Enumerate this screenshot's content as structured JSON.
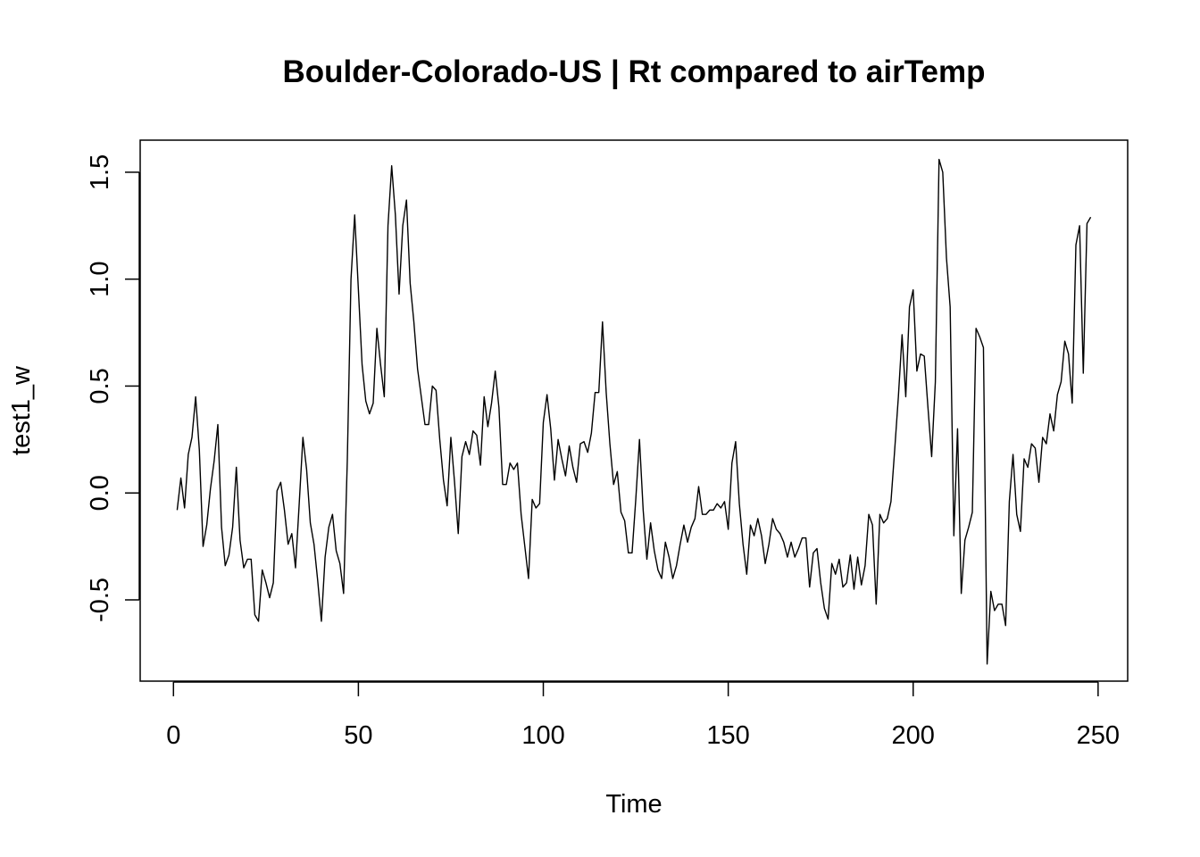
{
  "chart_data": {
    "type": "line",
    "title": "Boulder-Colorado-US | Rt compared to airTemp",
    "xlabel": "Time",
    "ylabel": "test1_w",
    "xlim": [
      -9,
      258
    ],
    "ylim": [
      -0.88,
      1.65
    ],
    "x_ticks": [
      0,
      50,
      100,
      150,
      200,
      250
    ],
    "x_tick_labels": [
      "0",
      "50",
      "100",
      "150",
      "200",
      "250"
    ],
    "y_ticks": [
      -0.5,
      0.0,
      0.5,
      1.0,
      1.5
    ],
    "y_tick_labels": [
      "-0.5",
      "0.0",
      "0.5",
      "1.0",
      "1.5"
    ],
    "grid": false,
    "series": [
      {
        "x": [
          1,
          2,
          3,
          4,
          5,
          6,
          7,
          8,
          9,
          10,
          11,
          12,
          13,
          14,
          15,
          16,
          17,
          18,
          19,
          20,
          21,
          22,
          23,
          24,
          25,
          26,
          27,
          28,
          29,
          30,
          31,
          32,
          33,
          34,
          35,
          36,
          37,
          38,
          39,
          40,
          41,
          42,
          43,
          44,
          45,
          46,
          47,
          48,
          49,
          50,
          51,
          52,
          53,
          54,
          55,
          56,
          57,
          58,
          59,
          60,
          61,
          62,
          63,
          64,
          65,
          66,
          67,
          68,
          69,
          70,
          71,
          72,
          73,
          74,
          75,
          76,
          77,
          78,
          79,
          80,
          81,
          82,
          83,
          84,
          85,
          86,
          87,
          88,
          89,
          90,
          91,
          92,
          93,
          94,
          95,
          96,
          97,
          98,
          99,
          100,
          101,
          102,
          103,
          104,
          105,
          106,
          107,
          108,
          109,
          110,
          111,
          112,
          113,
          114,
          115,
          116,
          117,
          118,
          119,
          120,
          121,
          122,
          123,
          124,
          125,
          126,
          127,
          128,
          129,
          130,
          131,
          132,
          133,
          134,
          135,
          136,
          137,
          138,
          139,
          140,
          141,
          142,
          143,
          144,
          145,
          146,
          147,
          148,
          149,
          150,
          151,
          152,
          153,
          154,
          155,
          156,
          157,
          158,
          159,
          160,
          161,
          162,
          163,
          164,
          165,
          166,
          167,
          168,
          169,
          170,
          171,
          172,
          173,
          174,
          175,
          176,
          177,
          178,
          179,
          180,
          181,
          182,
          183,
          184,
          185,
          186,
          187,
          188,
          189,
          190,
          191,
          192,
          193,
          194,
          195,
          196,
          197,
          198,
          199,
          200,
          201,
          202,
          203,
          204,
          205,
          206,
          207,
          208,
          209,
          210,
          211,
          212,
          213,
          214,
          215,
          216,
          217,
          218,
          219,
          220,
          221,
          222,
          223,
          224,
          225,
          226,
          227,
          228,
          229,
          230,
          231,
          232,
          233,
          234,
          235,
          236,
          237,
          238,
          239,
          240,
          241,
          242,
          243,
          244,
          245,
          246,
          247,
          248
        ],
        "y": [
          -0.08,
          0.07,
          -0.07,
          0.18,
          0.26,
          0.45,
          0.2,
          -0.25,
          -0.15,
          0.02,
          0.15,
          0.32,
          -0.16,
          -0.34,
          -0.29,
          -0.16,
          0.12,
          -0.22,
          -0.35,
          -0.31,
          -0.31,
          -0.57,
          -0.6,
          -0.36,
          -0.42,
          -0.49,
          -0.42,
          0.01,
          0.05,
          -0.08,
          -0.24,
          -0.19,
          -0.35,
          -0.05,
          0.26,
          0.11,
          -0.14,
          -0.24,
          -0.41,
          -0.6,
          -0.3,
          -0.16,
          -0.1,
          -0.27,
          -0.33,
          -0.47,
          0.15,
          1.0,
          1.3,
          0.95,
          0.6,
          0.43,
          0.37,
          0.42,
          0.77,
          0.6,
          0.45,
          1.25,
          1.53,
          1.3,
          0.93,
          1.25,
          1.37,
          0.98,
          0.8,
          0.58,
          0.45,
          0.32,
          0.32,
          0.5,
          0.48,
          0.25,
          0.06,
          -0.06,
          0.26,
          0.05,
          -0.19,
          0.17,
          0.24,
          0.18,
          0.29,
          0.27,
          0.13,
          0.45,
          0.31,
          0.42,
          0.57,
          0.4,
          0.04,
          0.04,
          0.14,
          0.11,
          0.14,
          -0.1,
          -0.25,
          -0.4,
          -0.03,
          -0.07,
          -0.05,
          0.33,
          0.46,
          0.3,
          0.06,
          0.25,
          0.16,
          0.08,
          0.22,
          0.12,
          0.05,
          0.23,
          0.24,
          0.19,
          0.28,
          0.47,
          0.47,
          0.8,
          0.47,
          0.23,
          0.04,
          0.1,
          -0.09,
          -0.13,
          -0.28,
          -0.28,
          -0.03,
          0.25,
          -0.08,
          -0.31,
          -0.14,
          -0.27,
          -0.36,
          -0.4,
          -0.23,
          -0.3,
          -0.4,
          -0.34,
          -0.24,
          -0.15,
          -0.23,
          -0.16,
          -0.12,
          0.03,
          -0.1,
          -0.1,
          -0.08,
          -0.08,
          -0.05,
          -0.07,
          -0.04,
          -0.17,
          0.14,
          0.24,
          -0.05,
          -0.24,
          -0.38,
          -0.15,
          -0.2,
          -0.12,
          -0.2,
          -0.33,
          -0.24,
          -0.12,
          -0.17,
          -0.19,
          -0.23,
          -0.3,
          -0.23,
          -0.3,
          -0.26,
          -0.21,
          -0.21,
          -0.44,
          -0.28,
          -0.26,
          -0.42,
          -0.54,
          -0.59,
          -0.33,
          -0.38,
          -0.31,
          -0.44,
          -0.42,
          -0.29,
          -0.45,
          -0.3,
          -0.43,
          -0.34,
          -0.1,
          -0.15,
          -0.52,
          -0.1,
          -0.14,
          -0.12,
          -0.04,
          0.2,
          0.45,
          0.74,
          0.45,
          0.87,
          0.95,
          0.57,
          0.65,
          0.64,
          0.4,
          0.17,
          0.52,
          1.56,
          1.5,
          1.1,
          0.87,
          -0.2,
          0.3,
          -0.47,
          -0.22,
          -0.16,
          -0.09,
          0.77,
          0.73,
          0.68,
          -0.8,
          -0.46,
          -0.55,
          -0.52,
          -0.52,
          -0.62,
          -0.04,
          0.18,
          -0.1,
          -0.18,
          0.16,
          0.12,
          0.23,
          0.21,
          0.05,
          0.26,
          0.23,
          0.37,
          0.29,
          0.46,
          0.52,
          0.71,
          0.65,
          0.42,
          1.16,
          1.25,
          0.56,
          1.26,
          1.29
        ]
      }
    ]
  }
}
